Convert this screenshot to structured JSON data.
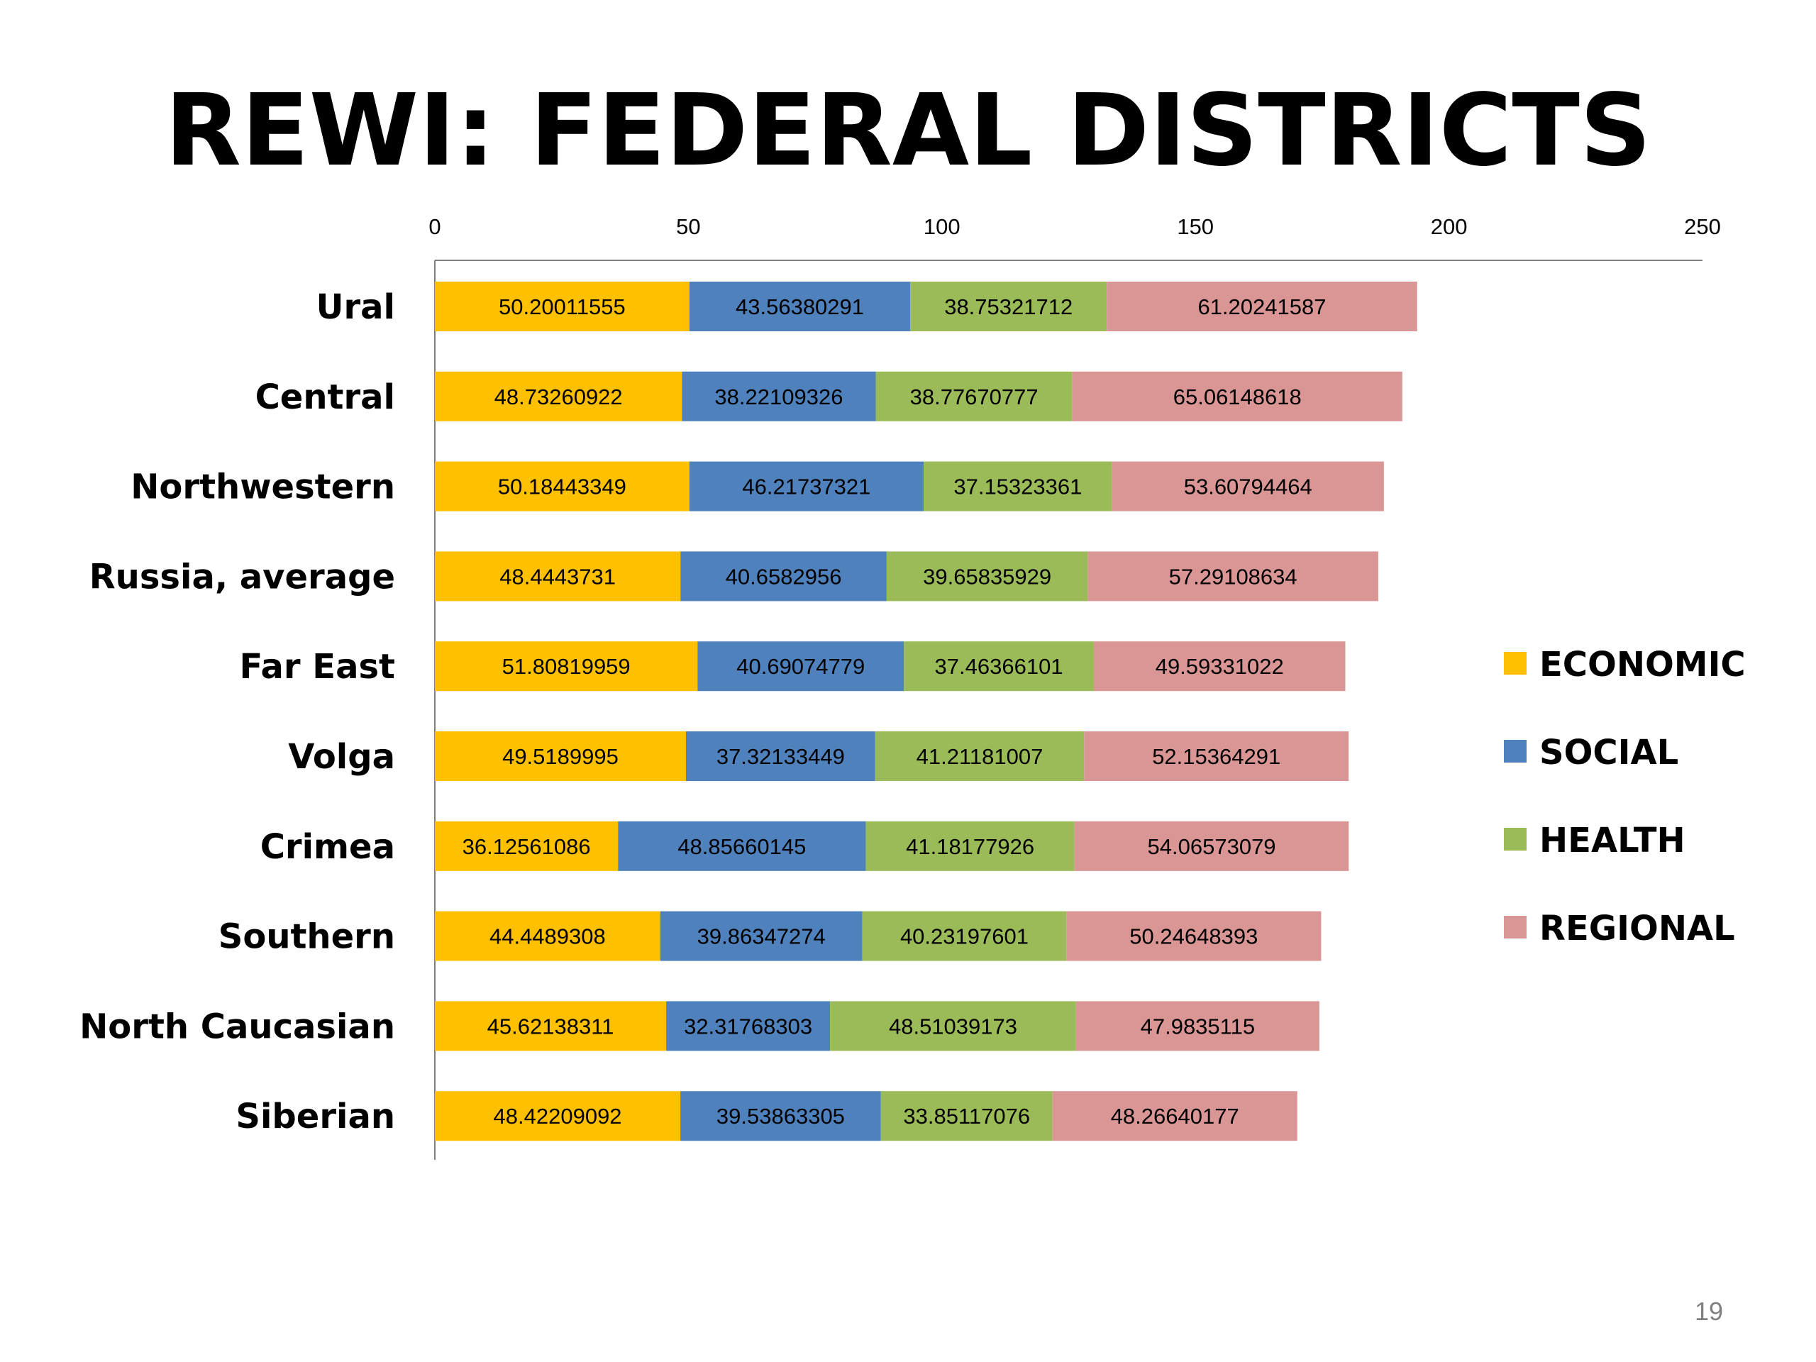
{
  "slide": {
    "title": "REWI: FEDERAL DISTRICTS",
    "page_number": "19"
  },
  "chart_data": {
    "type": "bar",
    "orientation": "horizontal",
    "stacked": true,
    "title": "",
    "xlabel": "",
    "ylabel": "",
    "xlim": [
      0,
      250
    ],
    "x_ticks": [
      "0",
      "50",
      "100",
      "150",
      "200",
      "250"
    ],
    "x_axis_position": "top",
    "grid": false,
    "legend_position": "right",
    "data_labels": true,
    "categories": [
      "Ural",
      "Central",
      "Northwestern",
      "Russia, average",
      "Far East",
      "Volga",
      "Crimea",
      "Southern",
      "North Caucasian",
      "Siberian"
    ],
    "series": [
      {
        "name": "ECONOMIC",
        "color": "#FFC000",
        "values": [
          50.20011555,
          48.73260922,
          50.18443349,
          48.4443731,
          51.80819959,
          49.5189995,
          36.12561086,
          44.4489308,
          45.62138311,
          48.42209092
        ],
        "labels": [
          "50.20011555",
          "48.73260922",
          "50.18443349",
          "48.4443731",
          "51.80819959",
          "49.5189995",
          "36.12561086",
          "44.4489308",
          "45.62138311",
          "48.42209092"
        ]
      },
      {
        "name": "SOCIAL",
        "color": "#4F81BD",
        "values": [
          43.56380291,
          38.22109326,
          46.21737321,
          40.6582956,
          40.69074779,
          37.32133449,
          48.85660145,
          39.86347274,
          32.31768303,
          39.53863305
        ],
        "labels": [
          "43.56380291",
          "38.22109326",
          "46.21737321",
          "40.6582956",
          "40.69074779",
          "37.32133449",
          "48.85660145",
          "39.86347274",
          "32.31768303",
          "39.53863305"
        ]
      },
      {
        "name": "HEALTH",
        "color": "#9BBB59",
        "values": [
          38.75321712,
          38.77670777,
          37.15323361,
          39.65835929,
          37.46366101,
          41.21181007,
          41.18177926,
          40.23197601,
          48.51039173,
          33.85117076
        ],
        "labels": [
          "38.75321712",
          "38.77670777",
          "37.15323361",
          "39.65835929",
          "37.46366101",
          "41.21181007",
          "41.18177926",
          "40.23197601",
          "48.51039173",
          "33.85117076"
        ]
      },
      {
        "name": "REGIONAL",
        "color": "#D99694",
        "values": [
          61.20241587,
          65.06148618,
          53.60794464,
          57.29108634,
          49.59331022,
          52.15364291,
          54.06573079,
          50.24648393,
          47.9835115,
          48.26640177
        ],
        "labels": [
          "61.20241587",
          "65.06148618",
          "53.60794464",
          "57.29108634",
          "49.59331022",
          "52.15364291",
          "54.06573079",
          "50.24648393",
          "47.9835115",
          "48.26640177"
        ]
      }
    ]
  }
}
